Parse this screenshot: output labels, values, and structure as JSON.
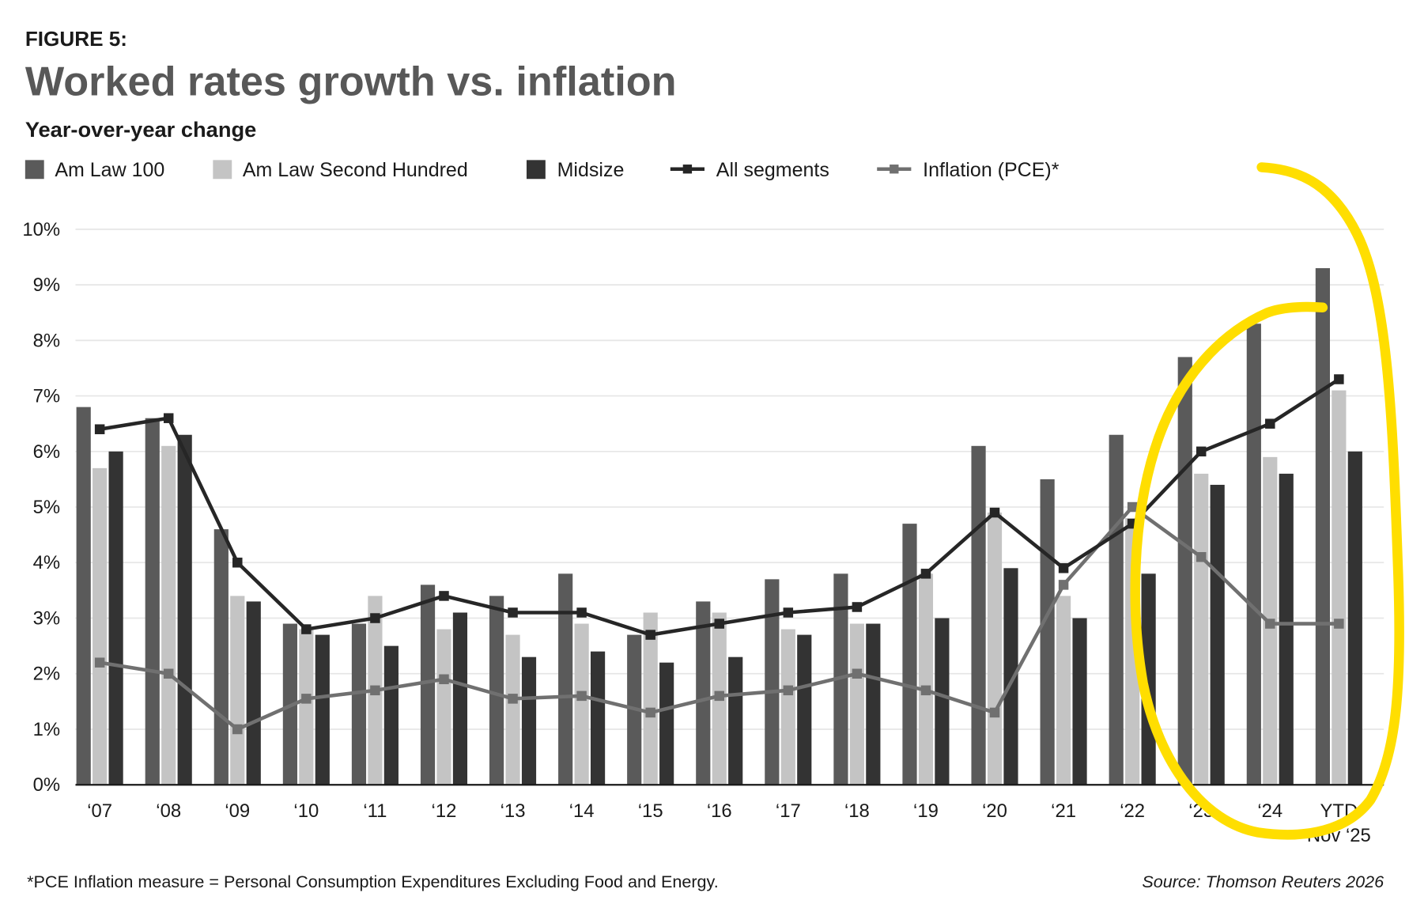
{
  "header": {
    "figure_label": "FIGURE 5:",
    "title": "Worked rates growth vs. inflation",
    "subtitle": "Year-over-year change"
  },
  "footer": {
    "note": "*PCE Inflation measure =  Personal Consumption Expenditures Excluding Food and Energy.",
    "source": "Source: Thomson Reuters 2026"
  },
  "colors": {
    "am_law_100": "#5a5a5a",
    "am_law_second_hundred": "#c4c4c4",
    "midsize": "#333333",
    "all_segments": "#262626",
    "inflation": "#707070",
    "annotation": "#ffde00",
    "grid": "#e6e6e6"
  },
  "chart_data": {
    "type": "bar",
    "title": "Worked rates growth vs. inflation",
    "subtitle": "Year-over-year change",
    "xlabel": "",
    "ylabel": "",
    "ylim": [
      0,
      10
    ],
    "y_ticks": [
      "0%",
      "1%",
      "2%",
      "3%",
      "4%",
      "5%",
      "6%",
      "7%",
      "8%",
      "9%",
      "10%"
    ],
    "grid": true,
    "legend_position": "top-left",
    "categories": [
      "‘07",
      "‘08",
      "‘09",
      "‘10",
      "‘11",
      "‘12",
      "‘13",
      "‘14",
      "‘15",
      "‘16",
      "‘17",
      "‘18",
      "‘19",
      "‘20",
      "‘21",
      "‘22",
      "‘23",
      "‘24",
      "YTD"
    ],
    "last_category_sublabel": "Nov ‘25",
    "series": [
      {
        "name": "Am Law 100",
        "kind": "bar",
        "values": [
          6.8,
          6.6,
          4.6,
          2.9,
          2.9,
          3.6,
          3.4,
          3.8,
          2.7,
          3.3,
          3.7,
          3.8,
          4.7,
          6.1,
          5.5,
          6.3,
          7.7,
          8.3,
          9.3
        ]
      },
      {
        "name": "Am Law Second Hundred",
        "kind": "bar",
        "values": [
          5.7,
          6.1,
          3.4,
          2.8,
          3.4,
          2.8,
          2.7,
          2.9,
          3.1,
          3.1,
          2.8,
          2.9,
          3.8,
          4.9,
          3.4,
          4.8,
          5.6,
          5.9,
          7.1
        ]
      },
      {
        "name": "Midsize",
        "kind": "bar",
        "values": [
          6.0,
          6.3,
          3.3,
          2.7,
          2.5,
          3.1,
          2.3,
          2.4,
          2.2,
          2.3,
          2.7,
          2.9,
          3.0,
          3.9,
          3.0,
          3.8,
          5.4,
          5.6,
          6.0
        ]
      },
      {
        "name": "All segments",
        "kind": "line",
        "values": [
          6.4,
          6.6,
          4.0,
          2.8,
          3.0,
          3.4,
          3.1,
          3.1,
          2.7,
          2.9,
          3.1,
          3.2,
          3.8,
          4.9,
          3.9,
          4.7,
          6.0,
          6.5,
          7.3
        ]
      },
      {
        "name": "Inflation (PCE)*",
        "kind": "line",
        "values": [
          2.2,
          2.0,
          1.0,
          1.55,
          1.7,
          1.9,
          1.55,
          1.6,
          1.3,
          1.6,
          1.7,
          2.0,
          1.7,
          1.3,
          3.6,
          5.0,
          4.1,
          2.9,
          2.9
        ]
      }
    ],
    "annotations": [
      "yellow hand-drawn circle around ‘23, ‘24 and YTD Nov ‘25"
    ]
  }
}
